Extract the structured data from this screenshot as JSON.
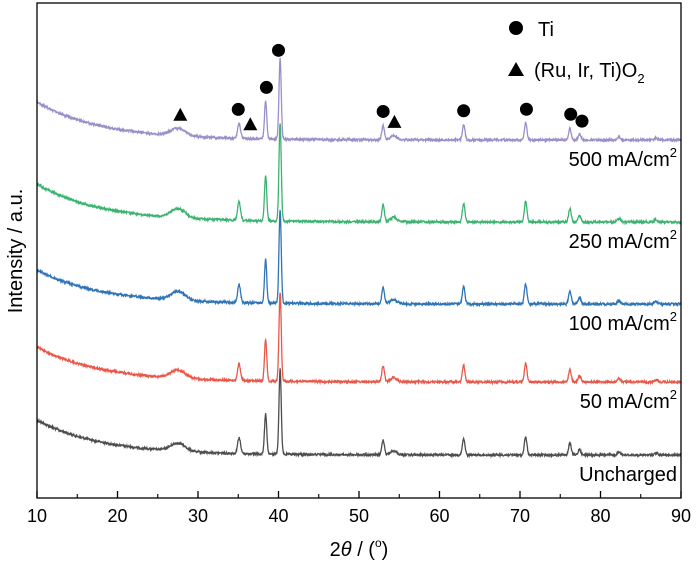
{
  "chart_data": {
    "type": "line",
    "title": "",
    "xlabel": "2θ / (°)",
    "xlabel_parts": {
      "prefix": "2",
      "theta": "θ",
      "middle": " / (",
      "unit": "o",
      "suffix": ")"
    },
    "ylabel": "Intensity / a.u.",
    "xlim": [
      10,
      90
    ],
    "xticks": [
      10,
      20,
      30,
      40,
      50,
      60,
      70,
      80,
      90
    ],
    "yticks_shown": false,
    "grid": false,
    "legend": {
      "placement": "top-right",
      "entries": [
        {
          "marker": "circle",
          "label": "Ti"
        },
        {
          "marker": "triangle",
          "label_main": "(Ru, Ir, Ti)O",
          "label_sub": "2"
        }
      ]
    },
    "series": [
      {
        "name": "Uncharged",
        "label_main": "Uncharged",
        "label_sup": "",
        "color": "#4d4d4d",
        "baseline": 455,
        "start_offset": 35,
        "amp": 1.0
      },
      {
        "name": "50 mA/cm2",
        "label_main": "50  mA/cm",
        "label_sup": "2",
        "color": "#e8584a",
        "baseline": 382,
        "start_offset": 35,
        "amp": 1.05
      },
      {
        "name": "100 mA/cm2",
        "label_main": "100 mA/cm",
        "label_sup": "2",
        "color": "#2f74b5",
        "baseline": 304,
        "start_offset": 34,
        "amp": 1.1
      },
      {
        "name": "250 mA/cm2",
        "label_main": "250 mA/cm",
        "label_sup": "2",
        "color": "#3cb371",
        "baseline": 222,
        "start_offset": 38,
        "amp": 1.15
      },
      {
        "name": "500 mA/cm2",
        "label_main": "500 mA/cm",
        "label_sup": "2",
        "color": "#9b8ec9",
        "baseline": 140,
        "start_offset": 38,
        "amp": 0.95
      }
    ],
    "peaks": [
      {
        "x": 27.5,
        "h": 8,
        "w": 0.9
      },
      {
        "x": 35.1,
        "h": 16,
        "w": 0.18
      },
      {
        "x": 38.4,
        "h": 40,
        "w": 0.14
      },
      {
        "x": 40.2,
        "h": 85,
        "w": 0.14
      },
      {
        "x": 53.0,
        "h": 15,
        "w": 0.16
      },
      {
        "x": 54.3,
        "h": 4,
        "w": 0.4
      },
      {
        "x": 63.0,
        "h": 16,
        "w": 0.16
      },
      {
        "x": 70.7,
        "h": 18,
        "w": 0.16
      },
      {
        "x": 76.2,
        "h": 12,
        "w": 0.16
      },
      {
        "x": 77.4,
        "h": 6,
        "w": 0.16
      },
      {
        "x": 82.3,
        "h": 3,
        "w": 0.2
      },
      {
        "x": 86.9,
        "h": 2,
        "w": 0.2
      }
    ],
    "annotations": [
      {
        "marker": "triangle",
        "x": 27.8
      },
      {
        "marker": "circle",
        "x": 35.0
      },
      {
        "marker": "triangle",
        "x": 36.5
      },
      {
        "marker": "circle",
        "x": 38.5
      },
      {
        "marker": "circle",
        "x": 40.0
      },
      {
        "marker": "circle",
        "x": 53.0
      },
      {
        "marker": "triangle",
        "x": 54.4
      },
      {
        "marker": "circle",
        "x": 63.0
      },
      {
        "marker": "circle",
        "x": 70.8
      },
      {
        "marker": "circle",
        "x": 76.3
      },
      {
        "marker": "circle",
        "x": 77.7
      }
    ]
  }
}
